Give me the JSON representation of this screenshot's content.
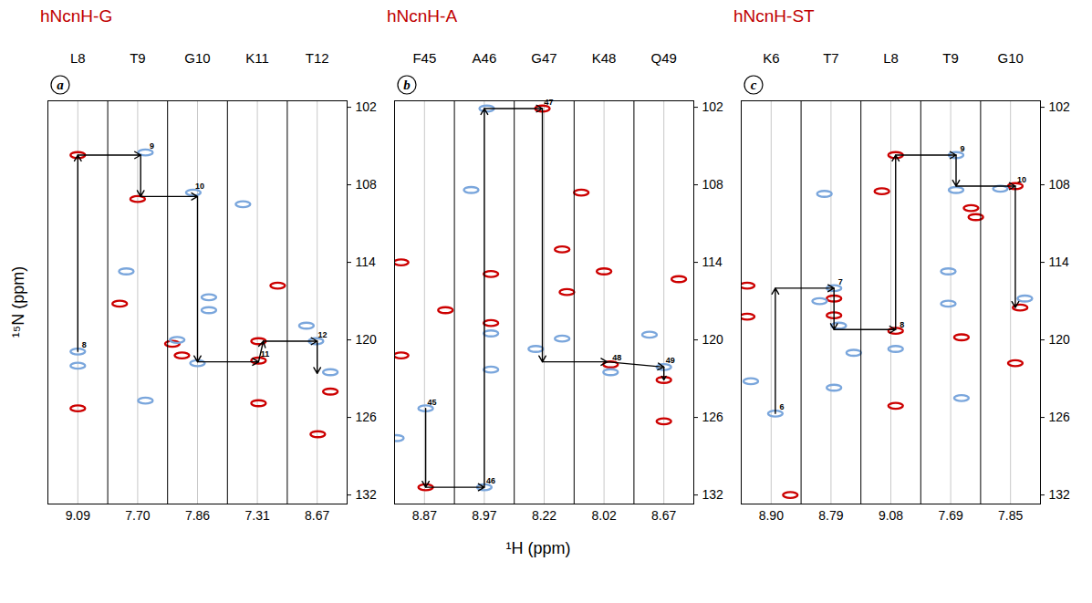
{
  "xlabel": "¹H (ppm)",
  "ylabel": "¹⁵N (ppm)",
  "chart_data": [
    {
      "type": "scatter",
      "title": "hNcnH-G",
      "panel": "a",
      "categories": [
        "L8",
        "T9",
        "G10",
        "K11",
        "T12"
      ],
      "h_ppm": [
        9.09,
        {
          "value": 7.7,
          "label": "7.70"
        },
        7.86,
        7.31,
        8.67
      ],
      "ylim": [
        132.7,
        101.5
      ],
      "yticks": [
        102,
        108,
        114,
        120,
        126,
        132
      ],
      "series": [
        {
          "color": "#cc0000",
          "points": [
            [
              0.5,
              105.7
            ],
            [
              0.5,
              125.3
            ],
            [
              1.5,
              109.1
            ],
            [
              1.2,
              117.2
            ],
            [
              2.08,
              120.3
            ],
            [
              2.24,
              121.2
            ],
            [
              3.52,
              120.1
            ],
            [
              3.52,
              121.6
            ],
            [
              3.52,
              124.9
            ],
            [
              3.84,
              115.8
            ],
            [
              4.72,
              124.0
            ],
            [
              4.51,
              127.3
            ]
          ]
        },
        {
          "color": "#7aa6dc",
          "points": [
            [
              0.5,
              120.9
            ],
            [
              0.5,
              122.0
            ],
            [
              1.63,
              105.5
            ],
            [
              1.31,
              114.7
            ],
            [
              1.63,
              124.7
            ],
            [
              2.43,
              108.6
            ],
            [
              2.69,
              116.7
            ],
            [
              2.69,
              117.7
            ],
            [
              2.16,
              120.0
            ],
            [
              2.5,
              121.8
            ],
            [
              3.26,
              109.5
            ],
            [
              4.32,
              118.9
            ],
            [
              4.48,
              120.1
            ],
            [
              4.72,
              122.5
            ]
          ]
        }
      ],
      "peak_labels": [
        {
          "x": 0.5,
          "y": 120.9,
          "text": "8"
        },
        {
          "x": 1.63,
          "y": 105.5,
          "text": "9"
        },
        {
          "x": 2.43,
          "y": 108.6,
          "text": "10"
        },
        {
          "x": 3.52,
          "y": 121.6,
          "text": "11"
        },
        {
          "x": 4.48,
          "y": 120.1,
          "text": "12"
        }
      ],
      "path": [
        [
          0.5,
          120.9
        ],
        [
          0.5,
          105.7
        ],
        [
          1.55,
          105.7
        ],
        [
          1.55,
          108.9
        ],
        [
          2.5,
          108.9
        ],
        [
          2.5,
          121.7
        ],
        [
          3.52,
          121.7
        ],
        [
          3.6,
          120.1
        ],
        [
          4.5,
          120.1
        ],
        [
          4.5,
          122.6
        ]
      ]
    },
    {
      "type": "scatter",
      "title": "hNcnH-A",
      "panel": "b",
      "categories": [
        "F45",
        "A46",
        "G47",
        "K48",
        "Q49"
      ],
      "h_ppm": [
        8.87,
        8.97,
        8.22,
        8.02,
        8.67
      ],
      "ylim": [
        132.7,
        101.5
      ],
      "yticks": [
        102,
        108,
        114,
        120,
        126,
        132
      ],
      "series": [
        {
          "color": "#cc0000",
          "points": [
            [
              0.52,
              131.4
            ],
            [
              0.11,
              121.2
            ],
            [
              0.11,
              114.0
            ],
            [
              0.85,
              117.7
            ],
            [
              1.61,
              114.9
            ],
            [
              1.61,
              118.7
            ],
            [
              2.47,
              102.1
            ],
            [
              3.12,
              108.6
            ],
            [
              2.8,
              113.0
            ],
            [
              2.88,
              116.3
            ],
            [
              3.5,
              114.7
            ],
            [
              3.61,
              121.9
            ],
            [
              4.75,
              115.3
            ],
            [
              4.5,
              123.1
            ],
            [
              4.5,
              126.3
            ]
          ]
        },
        {
          "color": "#7aa6dc",
          "points": [
            [
              0.52,
              125.3
            ],
            [
              0.03,
              127.6
            ],
            [
              1.28,
              108.4
            ],
            [
              1.54,
              102.1
            ],
            [
              1.61,
              119.5
            ],
            [
              1.61,
              122.3
            ],
            [
              1.5,
              131.4
            ],
            [
              2.8,
              119.9
            ],
            [
              2.36,
              120.7
            ],
            [
              3.61,
              122.5
            ],
            [
              4.26,
              119.6
            ],
            [
              4.5,
              122.1
            ]
          ]
        }
      ],
      "peak_labels": [
        {
          "x": 0.52,
          "y": 125.3,
          "text": "45"
        },
        {
          "x": 1.5,
          "y": 131.4,
          "text": "46"
        },
        {
          "x": 2.47,
          "y": 102.1,
          "text": "47"
        },
        {
          "x": 3.61,
          "y": 121.9,
          "text": "48"
        },
        {
          "x": 4.5,
          "y": 122.1,
          "text": "49"
        }
      ],
      "path": [
        [
          0.52,
          125.3
        ],
        [
          0.52,
          131.4
        ],
        [
          1.5,
          131.4
        ],
        [
          1.5,
          102.1
        ],
        [
          2.47,
          102.1
        ],
        [
          2.47,
          121.7
        ],
        [
          3.55,
          121.7
        ],
        [
          4.5,
          122.1
        ],
        [
          4.5,
          123.1
        ]
      ]
    },
    {
      "type": "scatter",
      "title": "hNcnH-ST",
      "panel": "c",
      "categories": [
        "K6",
        "T7",
        "L8",
        "T9",
        "G10"
      ],
      "h_ppm": [
        {
          "value": 8.9,
          "label": "8.90"
        },
        8.79,
        9.08,
        7.69,
        7.85
      ],
      "ylim": [
        132.7,
        101.5
      ],
      "yticks": [
        102,
        108,
        114,
        120,
        126,
        132
      ],
      "series": [
        {
          "color": "#cc0000",
          "points": [
            [
              0.1,
              115.8
            ],
            [
              0.1,
              118.2
            ],
            [
              0.82,
              132.0
            ],
            [
              1.55,
              116.8
            ],
            [
              1.55,
              118.1
            ],
            [
              2.35,
              108.5
            ],
            [
              2.58,
              105.7
            ],
            [
              2.58,
              119.3
            ],
            [
              2.58,
              125.1
            ],
            [
              3.84,
              109.8
            ],
            [
              3.92,
              110.5
            ],
            [
              3.68,
              119.8
            ],
            [
              4.58,
              108.1
            ],
            [
              4.66,
              117.5
            ],
            [
              4.58,
              121.8
            ]
          ]
        },
        {
          "color": "#7aa6dc",
          "points": [
            [
              0.57,
              125.7
            ],
            [
              0.16,
              123.2
            ],
            [
              1.39,
              108.7
            ],
            [
              1.31,
              117.0
            ],
            [
              1.55,
              116.0
            ],
            [
              1.63,
              118.9
            ],
            [
              1.88,
              121.0
            ],
            [
              1.55,
              123.7
            ],
            [
              2.58,
              120.7
            ],
            [
              3.59,
              105.7
            ],
            [
              3.59,
              108.4
            ],
            [
              3.46,
              114.7
            ],
            [
              3.46,
              117.2
            ],
            [
              3.68,
              124.5
            ],
            [
              4.33,
              108.3
            ],
            [
              4.74,
              116.8
            ]
          ]
        }
      ],
      "peak_labels": [
        {
          "x": 0.57,
          "y": 125.7,
          "text": "6"
        },
        {
          "x": 1.55,
          "y": 116.0,
          "text": "7"
        },
        {
          "x": 2.58,
          "y": 119.3,
          "text": "8"
        },
        {
          "x": 3.59,
          "y": 105.7,
          "text": "9"
        },
        {
          "x": 4.58,
          "y": 108.1,
          "text": "10"
        }
      ],
      "path": [
        [
          0.57,
          125.7
        ],
        [
          0.57,
          116.0
        ],
        [
          1.55,
          116.0
        ],
        [
          1.55,
          119.2
        ],
        [
          2.58,
          119.2
        ],
        [
          2.58,
          105.7
        ],
        [
          3.59,
          105.7
        ],
        [
          3.59,
          108.1
        ],
        [
          4.58,
          108.1
        ],
        [
          4.58,
          117.5
        ]
      ]
    }
  ]
}
